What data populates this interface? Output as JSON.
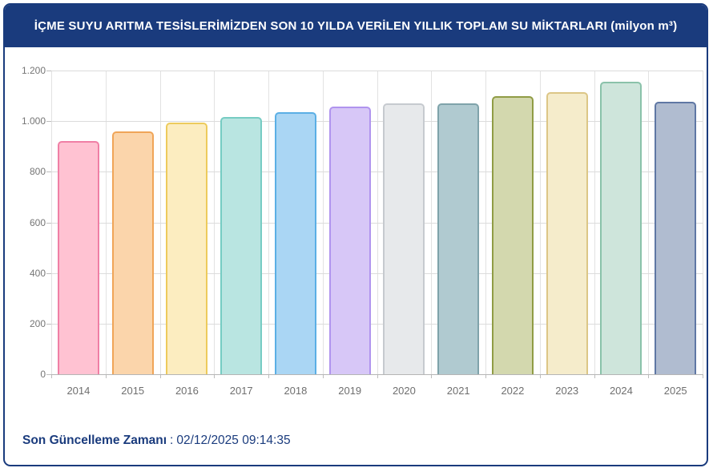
{
  "header": {
    "title": "İÇME SUYU ARITMA TESİSLERİMİZDEN SON 10 YILDA VERİLEN YILLIK TOPLAM SU MİKTARLARI (milyon m³)"
  },
  "footer": {
    "label": "Son Güncelleme Zamanı",
    "separator": ":",
    "value": "02/12/2025 09:14:35"
  },
  "colors": {
    "brand_navy": "#1A3B7D",
    "grid": "#DCDCDC",
    "axis": "#B5B5B5",
    "axis_label": "#757575"
  },
  "chart_data": {
    "type": "bar",
    "title": "İÇME SUYU ARITMA TESİSLERİMİZDEN SON 10 YILDA VERİLEN YILLIK TOPLAM SU MİKTARLARI (milyon m³)",
    "xlabel": "",
    "ylabel": "",
    "categories": [
      "2014",
      "2015",
      "2016",
      "2017",
      "2018",
      "2019",
      "2020",
      "2021",
      "2022",
      "2023",
      "2024",
      "2025"
    ],
    "values": [
      920,
      960,
      995,
      1016,
      1036,
      1057,
      1070,
      1071,
      1100,
      1114,
      1157,
      1078
    ],
    "unit": "milyon m³",
    "ylim": [
      0,
      1200
    ],
    "ytick_step": 200,
    "ytick_labels": [
      "0",
      "200",
      "400",
      "600",
      "800",
      "1.000",
      "1.200"
    ],
    "grid": true,
    "legend_position": "none",
    "bar_fill_colors": [
      "#FFC2D2",
      "#FBD5AB",
      "#FCEDC0",
      "#B9E5E1",
      "#AAD6F4",
      "#D7C7F7",
      "#E7E9EB",
      "#B0CAD0",
      "#D3D8AE",
      "#F5ECCB",
      "#CEE5DB",
      "#B0BCD0"
    ],
    "bar_border_colors": [
      "#F07FA5",
      "#F0A558",
      "#EDCB5C",
      "#76CCC3",
      "#5BAFE5",
      "#B094EE",
      "#C6CACF",
      "#7FA3AA",
      "#909C45",
      "#DCC686",
      "#8AC2AA",
      "#5F77A4"
    ]
  }
}
